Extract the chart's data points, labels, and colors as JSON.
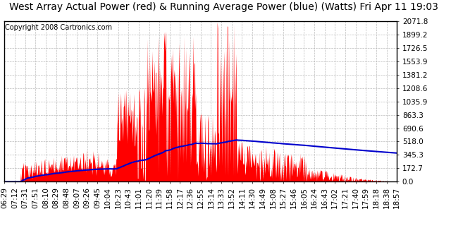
{
  "title": "West Array Actual Power (red) & Running Average Power (blue) (Watts) Fri Apr 11 19:03",
  "copyright": "Copyright 2008 Cartronics.com",
  "ymax": 2071.8,
  "ymin": 0.0,
  "yticks": [
    0.0,
    172.7,
    345.3,
    518.0,
    690.6,
    863.3,
    1035.9,
    1208.6,
    1381.2,
    1553.9,
    1726.5,
    1899.2,
    2071.8
  ],
  "xtick_labels": [
    "06:29",
    "07:12",
    "07:31",
    "07:51",
    "08:10",
    "08:29",
    "08:48",
    "09:07",
    "09:26",
    "09:45",
    "10:04",
    "10:23",
    "10:43",
    "11:01",
    "11:20",
    "11:39",
    "11:58",
    "12:17",
    "12:36",
    "12:55",
    "13:14",
    "13:33",
    "13:52",
    "14:11",
    "14:30",
    "14:49",
    "15:08",
    "15:27",
    "15:46",
    "16:05",
    "16:24",
    "16:43",
    "17:02",
    "17:21",
    "17:40",
    "17:59",
    "18:18",
    "18:38",
    "18:57"
  ],
  "bg_color": "#ffffff",
  "plot_bg_color": "#ffffff",
  "grid_color": "#aaaaaa",
  "actual_color": "#ff0000",
  "avg_color": "#0000cc",
  "title_fontsize": 10,
  "axis_fontsize": 7.5,
  "copyright_fontsize": 7
}
